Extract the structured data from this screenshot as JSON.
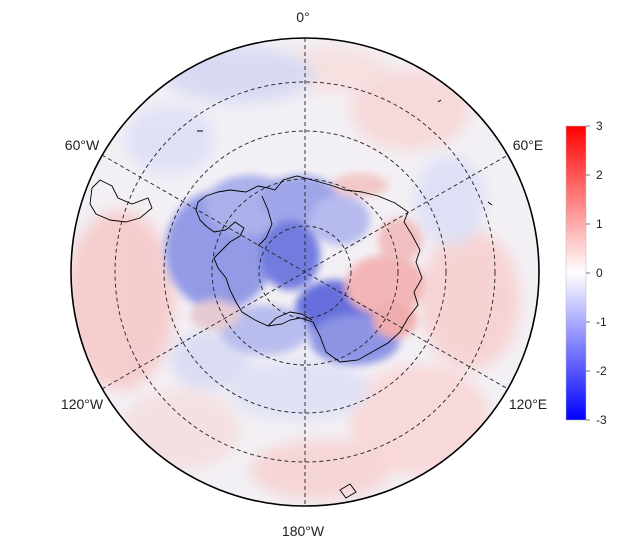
{
  "map": {
    "projection": "south-polar-stereographic",
    "coastline_color": "#000000",
    "graticule_style": "dashed",
    "longitude_labels": {
      "top": "0°",
      "upper_left": "60°W",
      "upper_right": "60°E",
      "lower_left": "120°W",
      "lower_right": "120°E",
      "bottom": "180°W"
    }
  },
  "colorbar": {
    "min": -3,
    "max": 3,
    "ticks": [
      "3",
      "2",
      "1",
      "0",
      "-1",
      "-2",
      "-3"
    ],
    "colors": {
      "low": "#0000ff",
      "mid": "#ffffff",
      "high": "#ff0000"
    }
  }
}
